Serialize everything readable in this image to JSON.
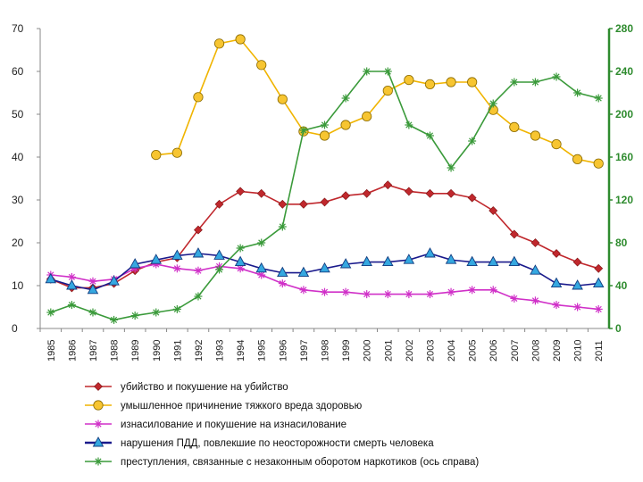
{
  "chart_data": {
    "type": "line",
    "categories": [
      "1985",
      "1986",
      "1987",
      "1988",
      "1989",
      "1990",
      "1991",
      "1992",
      "1993",
      "1994",
      "1995",
      "1996",
      "1997",
      "1998",
      "1999",
      "2000",
      "2001",
      "2002",
      "2003",
      "2004",
      "2005",
      "2006",
      "2007",
      "2008",
      "2009",
      "2010",
      "2011"
    ],
    "ylim_left": [
      0,
      70
    ],
    "yticks_left": [
      0,
      10,
      20,
      30,
      40,
      50,
      60,
      70
    ],
    "ylim_right": [
      0,
      280
    ],
    "yticks_right": [
      0,
      40,
      80,
      120,
      160,
      200,
      240,
      280
    ],
    "right_axis_color": "#2e8b2e",
    "series": [
      {
        "name": "убийство и покушение на убийство",
        "axis": "left",
        "color": "#c0282d",
        "marker": "diamond",
        "values": [
          11.5,
          9.5,
          9.5,
          10.5,
          13.5,
          15.5,
          16.5,
          23,
          29,
          32,
          31.5,
          29,
          29,
          29.5,
          31,
          31.5,
          33.5,
          32,
          31.5,
          31.5,
          30.5,
          27.5,
          22,
          20,
          17.5,
          15.5,
          14
        ]
      },
      {
        "name": "умышленное причинение тяжкого вреда здоровью",
        "axis": "left",
        "color": "#f0b400",
        "marker": "circle",
        "values": [
          null,
          null,
          null,
          null,
          null,
          40.5,
          41,
          54,
          66.5,
          67.5,
          61.5,
          53.5,
          46,
          45,
          47.5,
          49.5,
          55.5,
          58,
          57,
          57.5,
          57.5,
          51,
          47,
          45,
          43,
          39.5,
          38.5
        ]
      },
      {
        "name": "изнасилование и покушение на изнасилование",
        "axis": "left",
        "color": "#d030c8",
        "marker": "star",
        "values": [
          12.5,
          12,
          11,
          11.5,
          14,
          15,
          14,
          13.5,
          14.5,
          14,
          12.5,
          10.5,
          9,
          8.5,
          8.5,
          8,
          8,
          8,
          8,
          8.5,
          9,
          9,
          7,
          6.5,
          5.5,
          5,
          4.5
        ]
      },
      {
        "name": "нарушения ПДД, повлекшие по неосторожности смерть человека",
        "axis": "left",
        "color": "#1a1a8c",
        "marker": "triangle",
        "values": [
          11.5,
          10,
          9,
          11,
          15,
          16,
          17,
          17.5,
          17,
          15.5,
          14,
          13,
          13,
          14,
          15,
          15.5,
          15.5,
          16,
          17.5,
          16,
          15.5,
          15.5,
          15.5,
          13.5,
          10.5,
          10,
          10.5
        ]
      },
      {
        "name": "преступления, связанные с незаконным оборотом наркотиков (ось справа)",
        "axis": "right",
        "color": "#3a9a3a",
        "marker": "asterisk",
        "values": [
          15,
          22,
          15,
          8,
          12,
          15,
          18,
          30,
          55,
          75,
          80,
          95,
          185,
          190,
          215,
          240,
          240,
          190,
          180,
          150,
          175,
          210,
          230,
          230,
          235,
          220,
          215
        ]
      }
    ]
  }
}
